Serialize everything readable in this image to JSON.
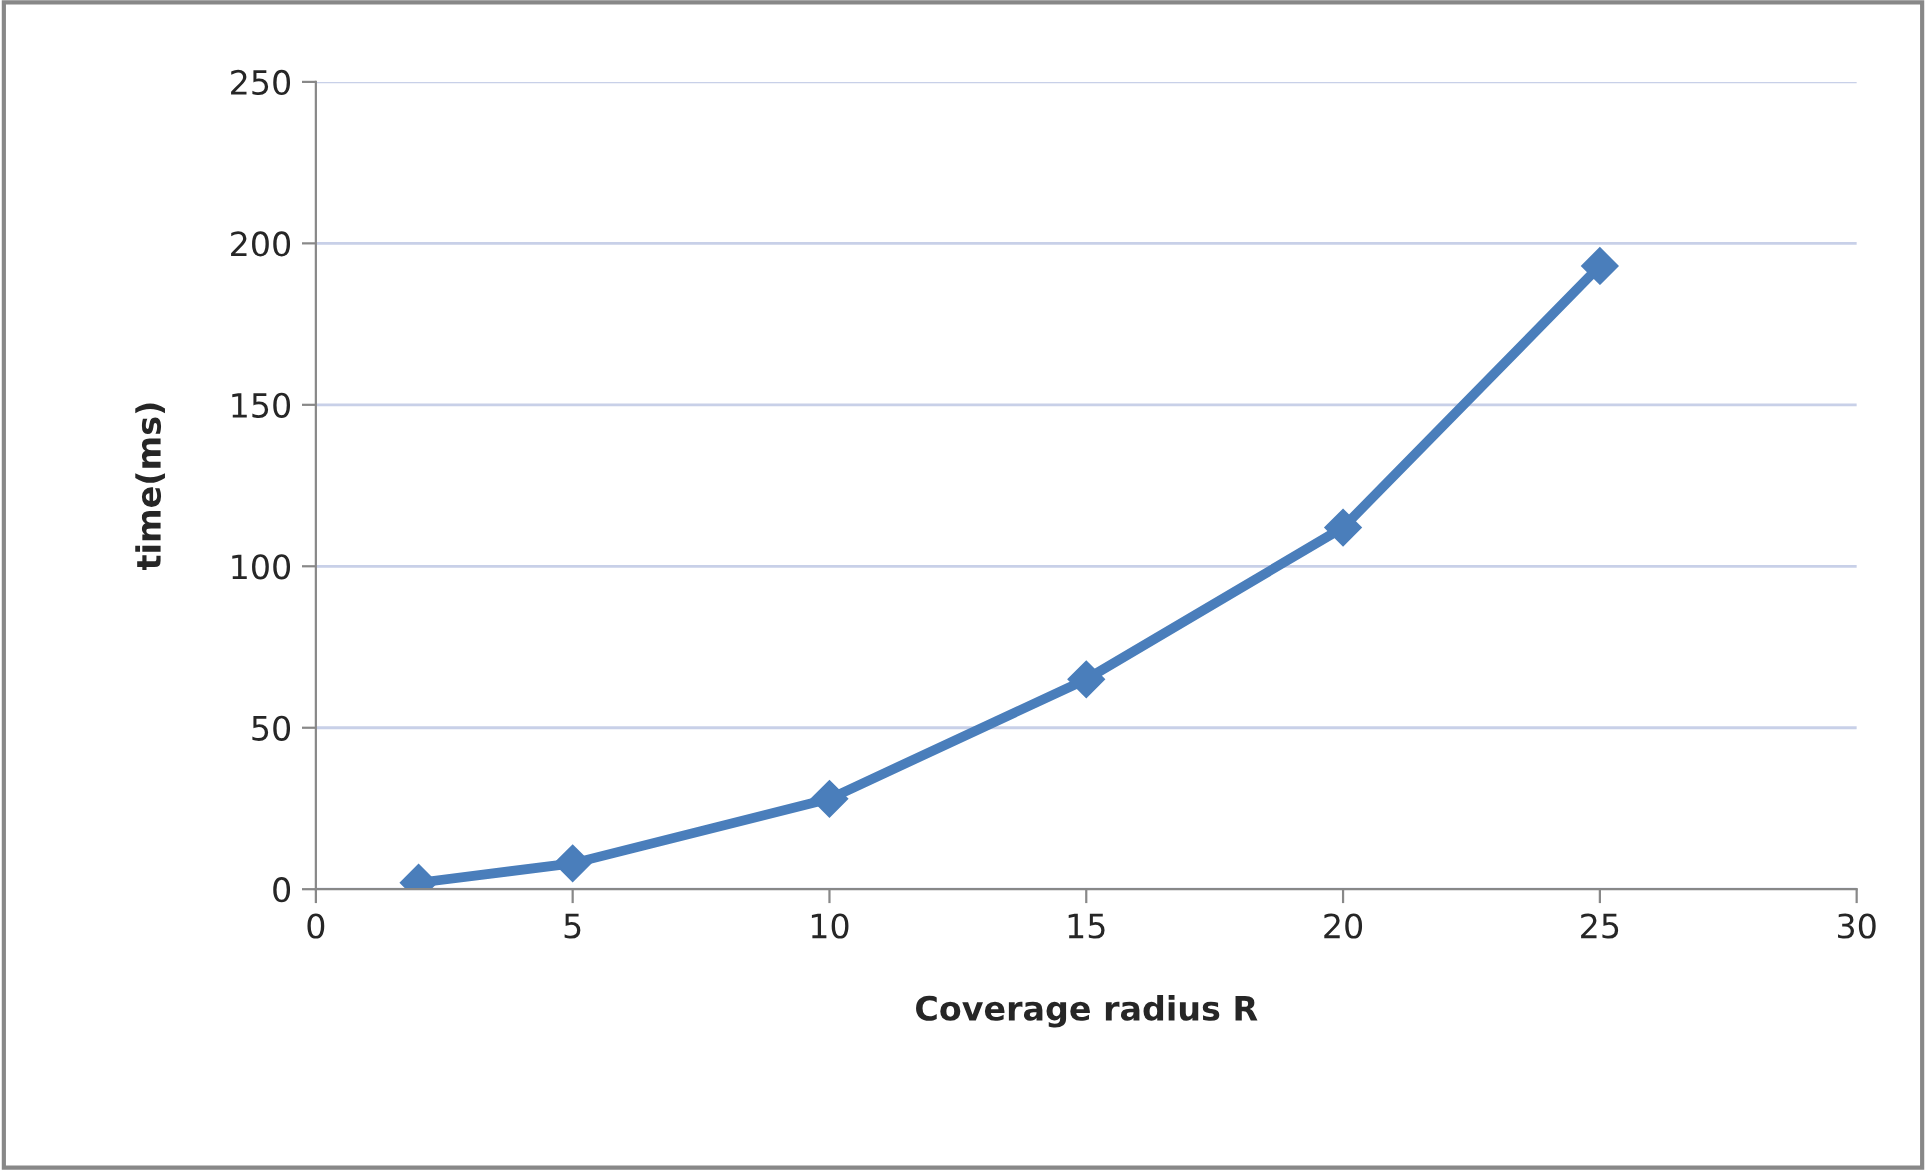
{
  "chart_data": {
    "type": "line",
    "xlabel": "Coverage radius R",
    "ylabel": "time(ms)",
    "x": [
      2,
      5,
      10,
      15,
      20,
      25
    ],
    "series": [
      {
        "color": "#4a7ebb",
        "values": [
          2,
          8,
          28,
          65,
          112,
          193
        ]
      }
    ],
    "xlim": [
      0,
      30
    ],
    "xticks": [
      0,
      5,
      10,
      15,
      20,
      25,
      30
    ],
    "ylim": [
      0,
      250
    ],
    "yticks": [
      0,
      50,
      100,
      150,
      200,
      250
    ],
    "grid": "y",
    "marker": "diamond",
    "line_style": "solid",
    "legend": false
  }
}
